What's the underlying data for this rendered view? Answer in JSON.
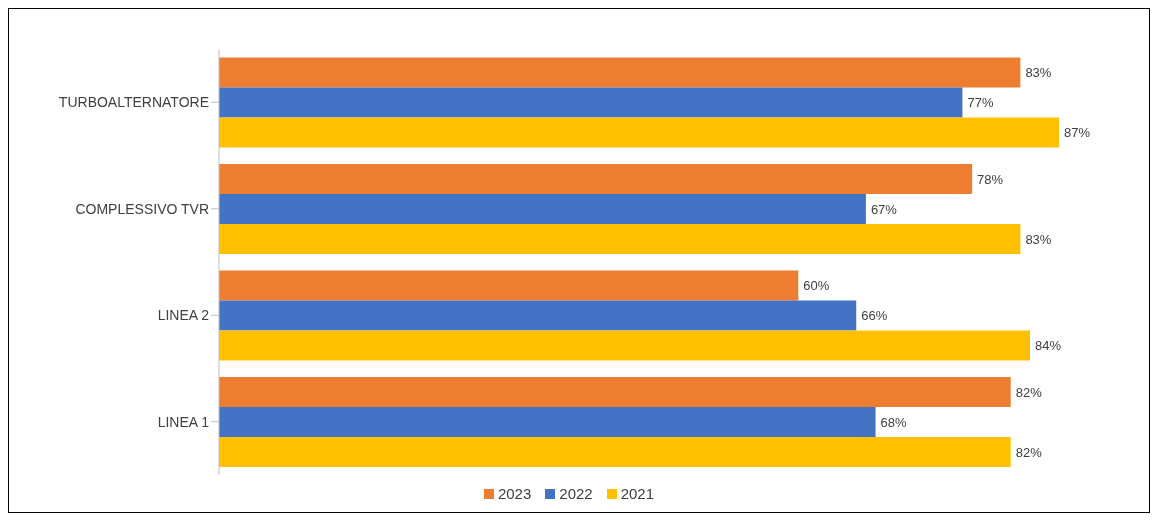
{
  "chart_data": {
    "type": "bar",
    "orientation": "horizontal",
    "categories": [
      "TURBOALTERNATORE",
      "COMPLESSIVO TVR",
      "LINEA 2",
      "LINEA 1"
    ],
    "series": [
      {
        "name": "2023",
        "color": "#ed7d31",
        "values": [
          83,
          78,
          60,
          82
        ],
        "value_labels": [
          "83%",
          "78%",
          "60%",
          "82%"
        ]
      },
      {
        "name": "2022",
        "color": "#4472c4",
        "values": [
          77,
          67,
          66,
          68
        ],
        "value_labels": [
          "77%",
          "67%",
          "66%",
          "68%"
        ]
      },
      {
        "name": "2021",
        "color": "#ffc000",
        "values": [
          87,
          83,
          84,
          82
        ],
        "value_labels": [
          "87%",
          "83%",
          "84%",
          "82%"
        ]
      }
    ],
    "tick_labels": "y",
    "legend": "bottom"
  }
}
